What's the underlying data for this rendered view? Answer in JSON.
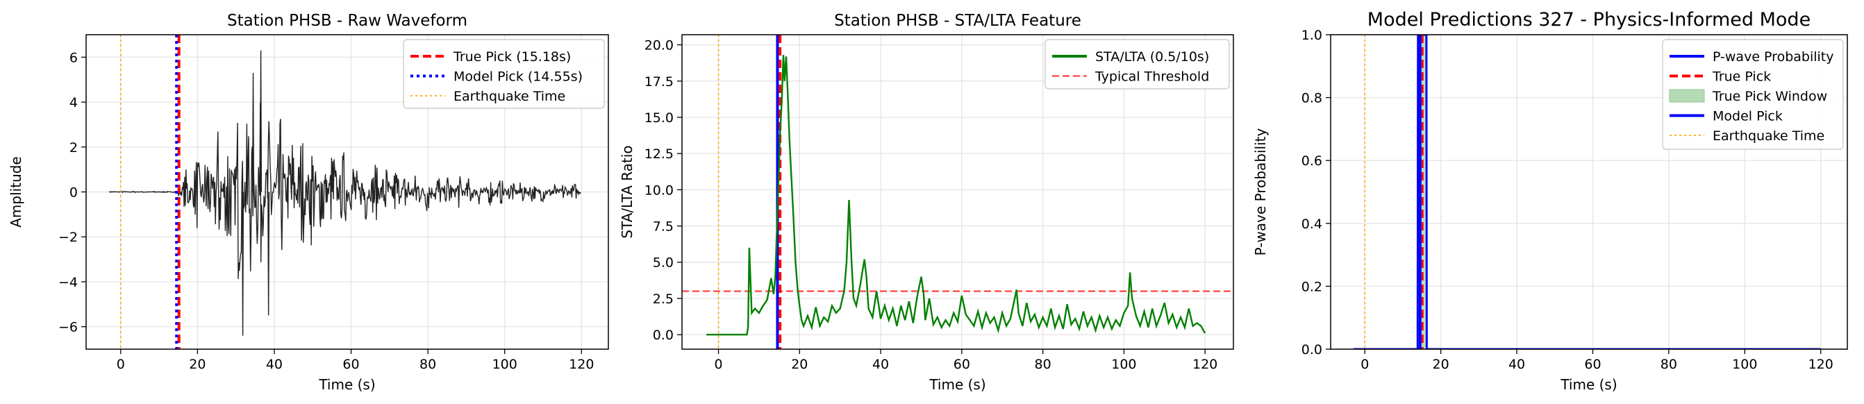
{
  "chart_data": [
    {
      "type": "line",
      "title": "Station PHSB - Raw Waveform",
      "xlabel": "Time (s)",
      "ylabel": "Amplitude",
      "xlim": [
        -9,
        127
      ],
      "ylim": [
        -7,
        7
      ],
      "xticks": [
        0,
        20,
        40,
        60,
        80,
        100,
        120
      ],
      "yticks": [
        -6,
        -4,
        -2,
        0,
        2,
        4,
        6
      ],
      "grid": true,
      "legend_position": "top-right",
      "series": [
        {
          "name": "True Pick (15.18s)",
          "kind": "vline",
          "x": 15.18,
          "color": "#ff0000",
          "style": "dashed"
        },
        {
          "name": "Model Pick (14.55s)",
          "kind": "vline",
          "x": 14.55,
          "color": "#0000ff",
          "style": "dotted"
        },
        {
          "name": "Earthquake Time",
          "kind": "vline",
          "x": 0,
          "color": "#ffa500",
          "style": "dotted"
        }
      ],
      "waveform": {
        "color": "#222222",
        "x_start": -3,
        "x_end": 120,
        "onset": 15,
        "peak_time": 32,
        "envelope_peaks": [
          {
            "x": 36.5,
            "y": 6.3
          },
          {
            "x": 31.8,
            "y": -6.4
          },
          {
            "x": 38.5,
            "y": -5.5
          },
          {
            "x": 34.5,
            "y": 5.3
          }
        ]
      }
    },
    {
      "type": "line",
      "title": "Station PHSB - STA/LTA Feature",
      "xlabel": "Time (s)",
      "ylabel": "STA/LTA Ratio",
      "xlim": [
        -9,
        127
      ],
      "ylim": [
        -1.0,
        20.7
      ],
      "xticks": [
        0,
        20,
        40,
        60,
        80,
        100,
        120
      ],
      "yticks": [
        0.0,
        2.5,
        5.0,
        7.5,
        10.0,
        12.5,
        15.0,
        17.5,
        20.0
      ],
      "yticklabels": [
        "0.0",
        "2.5",
        "5.0",
        "7.5",
        "10.0",
        "12.5",
        "15.0",
        "17.5",
        "20.0"
      ],
      "grid": true,
      "legend_position": "top-right",
      "series": [
        {
          "name": "STA/LTA (0.5/10s)",
          "kind": "line",
          "color": "#008000"
        },
        {
          "name": "Typical Threshold",
          "kind": "hline",
          "y": 3.0,
          "color": "#ff4040",
          "style": "dashed"
        }
      ],
      "vlines": [
        {
          "x": 0,
          "color": "#ffa500",
          "style": "dotted"
        },
        {
          "x": 14.55,
          "color": "#0000ff",
          "style": "solid"
        },
        {
          "x": 15.18,
          "color": "#ff0000",
          "style": "dashed"
        }
      ],
      "stalta_points": [
        [
          -3,
          0
        ],
        [
          7,
          0
        ],
        [
          7.3,
          0.5
        ],
        [
          7.6,
          6.0
        ],
        [
          8.2,
          1.5
        ],
        [
          9,
          1.8
        ],
        [
          10,
          1.5
        ],
        [
          11,
          2.0
        ],
        [
          12,
          2.4
        ],
        [
          13,
          3.9
        ],
        [
          13.6,
          2.8
        ],
        [
          14,
          3.9
        ],
        [
          15.2,
          14.0
        ],
        [
          15.6,
          16.0
        ],
        [
          16,
          19.3
        ],
        [
          16.3,
          17.5
        ],
        [
          16.7,
          19.2
        ],
        [
          17.1,
          16.5
        ],
        [
          17.5,
          13.5
        ],
        [
          18,
          10.8
        ],
        [
          18.5,
          8.0
        ],
        [
          19,
          5.0
        ],
        [
          19.5,
          3.2
        ],
        [
          20,
          2.0
        ],
        [
          20.5,
          1.0
        ],
        [
          21,
          0.6
        ],
        [
          22,
          1.3
        ],
        [
          23,
          0.5
        ],
        [
          24,
          1.9
        ],
        [
          25,
          0.6
        ],
        [
          26,
          1.2
        ],
        [
          27,
          0.9
        ],
        [
          28,
          2.0
        ],
        [
          29,
          1.5
        ],
        [
          30,
          1.8
        ],
        [
          31,
          3.0
        ],
        [
          31.6,
          5.0
        ],
        [
          32.2,
          9.3
        ],
        [
          32.8,
          5.2
        ],
        [
          33.3,
          2.5
        ],
        [
          34,
          2.0
        ],
        [
          35,
          3.5
        ],
        [
          36,
          5.2
        ],
        [
          36.5,
          4.0
        ],
        [
          37,
          1.8
        ],
        [
          38,
          1.2
        ],
        [
          39,
          3.0
        ],
        [
          40,
          1.1
        ],
        [
          41,
          2.0
        ],
        [
          42,
          1.0
        ],
        [
          43,
          1.8
        ],
        [
          44,
          0.6
        ],
        [
          45,
          2.0
        ],
        [
          46,
          1.0
        ],
        [
          47,
          2.3
        ],
        [
          48,
          0.8
        ],
        [
          49,
          2.6
        ],
        [
          50,
          4.0
        ],
        [
          50.6,
          2.8
        ],
        [
          51,
          1.0
        ],
        [
          52,
          2.5
        ],
        [
          53,
          0.7
        ],
        [
          54,
          1.2
        ],
        [
          55,
          0.5
        ],
        [
          56,
          1.0
        ],
        [
          57,
          0.6
        ],
        [
          58,
          1.5
        ],
        [
          59,
          0.9
        ],
        [
          60,
          2.7
        ],
        [
          61,
          1.4
        ],
        [
          62,
          1.0
        ],
        [
          63,
          0.6
        ],
        [
          64,
          1.6
        ],
        [
          65,
          0.5
        ],
        [
          66,
          1.5
        ],
        [
          67,
          0.8
        ],
        [
          68,
          1.2
        ],
        [
          69,
          0.3
        ],
        [
          70,
          1.5
        ],
        [
          71,
          0.6
        ],
        [
          72,
          1.1
        ],
        [
          73,
          2.4
        ],
        [
          73.5,
          3.1
        ],
        [
          74,
          1.5
        ],
        [
          75,
          0.6
        ],
        [
          76,
          2.2
        ],
        [
          77,
          0.9
        ],
        [
          78,
          1.4
        ],
        [
          79,
          0.5
        ],
        [
          80,
          1.2
        ],
        [
          81,
          0.6
        ],
        [
          82,
          1.8
        ],
        [
          83,
          0.5
        ],
        [
          84,
          1.3
        ],
        [
          85,
          0.4
        ],
        [
          86,
          2.1
        ],
        [
          87,
          0.7
        ],
        [
          88,
          1.1
        ],
        [
          89,
          0.4
        ],
        [
          90,
          1.6
        ],
        [
          91,
          0.6
        ],
        [
          92,
          1.2
        ],
        [
          93,
          0.3
        ],
        [
          94,
          1.3
        ],
        [
          95,
          0.5
        ],
        [
          96,
          1.2
        ],
        [
          97,
          0.4
        ],
        [
          98,
          1.0
        ],
        [
          99,
          0.6
        ],
        [
          100,
          1.5
        ],
        [
          101,
          2.0
        ],
        [
          101.5,
          4.3
        ],
        [
          102,
          2.5
        ],
        [
          103,
          1.3
        ],
        [
          104,
          0.6
        ],
        [
          105,
          1.6
        ],
        [
          106,
          0.5
        ],
        [
          107,
          1.8
        ],
        [
          108,
          0.6
        ],
        [
          109,
          1.3
        ],
        [
          110,
          2.2
        ],
        [
          111,
          0.8
        ],
        [
          112,
          1.4
        ],
        [
          113,
          0.5
        ],
        [
          114,
          1.2
        ],
        [
          115,
          0.5
        ],
        [
          116,
          1.8
        ],
        [
          117,
          0.6
        ],
        [
          118,
          0.8
        ],
        [
          119,
          0.6
        ],
        [
          120,
          0.1
        ]
      ]
    },
    {
      "type": "line",
      "title": "Model Predictions 327 - Physics-Informed Mode",
      "xlabel": "Time (s)",
      "ylabel": "P-wave Probability",
      "xlim": [
        -9,
        127
      ],
      "ylim": [
        0.0,
        1.0
      ],
      "xticks": [
        0,
        20,
        40,
        60,
        80,
        100,
        120
      ],
      "yticks": [
        0.0,
        0.2,
        0.4,
        0.6,
        0.8,
        1.0
      ],
      "yticklabels": [
        "0.0",
        "0.2",
        "0.4",
        "0.6",
        "0.8",
        "1.0"
      ],
      "grid": true,
      "legend_position": "top-right",
      "series": [
        {
          "name": "P-wave Probability",
          "kind": "line",
          "color": "#0000ff"
        },
        {
          "name": "True Pick",
          "kind": "vline",
          "x": 15.18,
          "color": "#ff0000",
          "style": "dashed"
        },
        {
          "name": "True Pick Window",
          "kind": "span",
          "x": [
            14.18,
            16.18
          ],
          "color": "#b5dbb5"
        },
        {
          "name": "Model Pick",
          "kind": "vline",
          "x": 14.55,
          "color": "#0000ff",
          "style": "solid"
        },
        {
          "name": "Earthquake Time",
          "kind": "vline",
          "x": 0,
          "color": "#ffa500",
          "style": "dotted"
        }
      ],
      "probability_points": [
        [
          -3,
          0
        ],
        [
          13.9,
          0
        ],
        [
          14.0,
          1.0
        ],
        [
          16.2,
          1.0
        ],
        [
          16.3,
          0
        ],
        [
          120,
          0
        ]
      ]
    }
  ]
}
